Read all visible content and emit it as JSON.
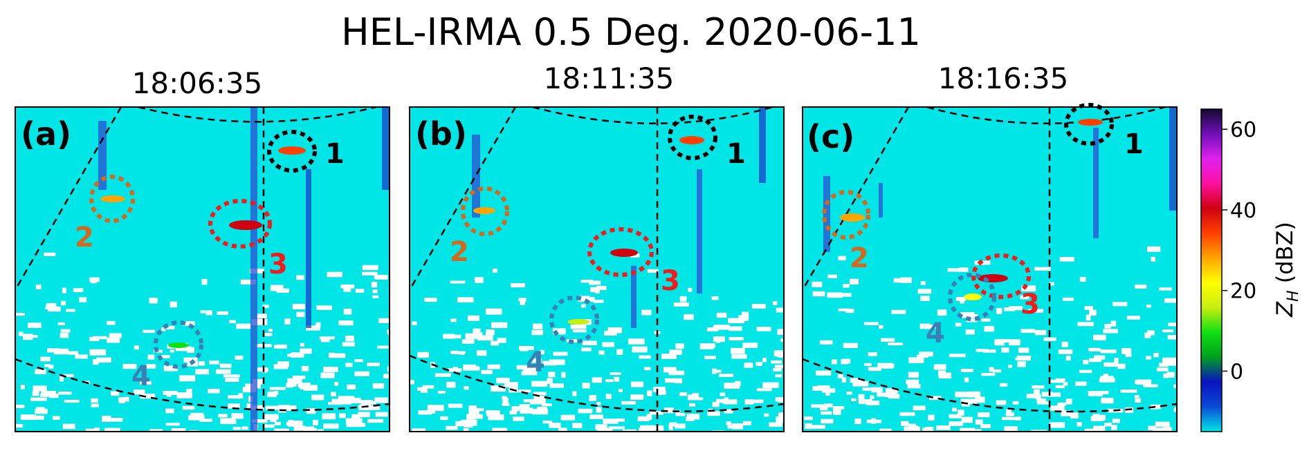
{
  "title": "HEL-IRMA 0.5 Deg. 2020-06-11",
  "colorbar": {
    "label_main": "Z",
    "label_sub": "H",
    "label_unit": " (dBZ)",
    "ticks": [
      "60",
      "40",
      "20",
      "0"
    ],
    "tick_values": [
      60,
      40,
      20,
      0
    ],
    "range": [
      -15,
      65
    ],
    "colors": [
      "#00e5e5",
      "#0a4bd8",
      "#0a12c0",
      "#00a020",
      "#10e010",
      "#c8ee10",
      "#ffff00",
      "#ffa500",
      "#ff4000",
      "#d00010",
      "#ff10a0",
      "#e020f0",
      "#7010b8",
      "#140a30"
    ]
  },
  "panels": [
    {
      "time": "18:06:35",
      "label": "(a)",
      "markers": [
        {
          "id": "1",
          "color": "#000000"
        },
        {
          "id": "2",
          "color": "#d2691e"
        },
        {
          "id": "3",
          "color": "#ee1c1c"
        },
        {
          "id": "4",
          "color": "#3a7fb5"
        }
      ]
    },
    {
      "time": "18:11:35",
      "label": "(b)",
      "markers": [
        {
          "id": "1",
          "color": "#000000"
        },
        {
          "id": "2",
          "color": "#d2691e"
        },
        {
          "id": "3",
          "color": "#ee1c1c"
        },
        {
          "id": "4",
          "color": "#3a7fb5"
        }
      ]
    },
    {
      "time": "18:16:35",
      "label": "(c)",
      "markers": [
        {
          "id": "1",
          "color": "#000000"
        },
        {
          "id": "2",
          "color": "#d2691e"
        },
        {
          "id": "3",
          "color": "#ee1c1c"
        },
        {
          "id": "4",
          "color": "#3a7fb5"
        }
      ]
    }
  ],
  "colors": {
    "background": "#00e5e5",
    "clutter": "#ffffff",
    "streak": "#2b4fd0"
  }
}
